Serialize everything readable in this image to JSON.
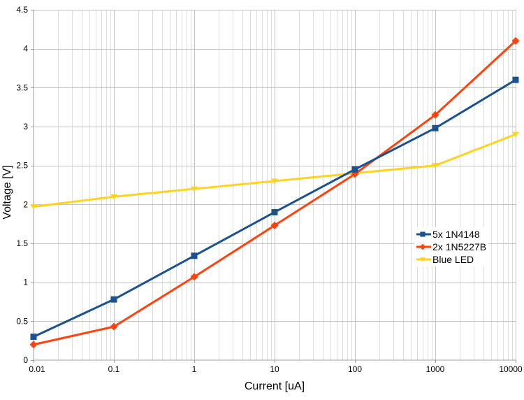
{
  "chart_data": {
    "type": "line",
    "title": "",
    "xlabel": "Current [uA]",
    "ylabel": "Voltage [V]",
    "x_scale": "log",
    "xlim": [
      0.01,
      10000
    ],
    "ylim": [
      0,
      4.5
    ],
    "x_ticks": [
      0.01,
      0.1,
      1,
      10,
      100,
      1000,
      10000
    ],
    "x_tick_labels": [
      "0.01",
      "0.1",
      "1",
      "10",
      "100",
      "1000",
      "10000"
    ],
    "y_ticks": [
      0,
      0.5,
      1,
      1.5,
      2,
      2.5,
      3,
      3.5,
      4,
      4.5
    ],
    "y_tick_labels": [
      "0",
      "0.5",
      "1",
      "1.5",
      "2",
      "2.5",
      "3",
      "3.5",
      "4",
      "4.5"
    ],
    "grid": {
      "horizontal": true,
      "vertical_major": true,
      "vertical_minor_log": true
    },
    "legend": {
      "position": "middle-right",
      "background": "#FFFFFF"
    },
    "x": [
      0.01,
      0.1,
      1,
      10,
      100,
      1000,
      10000
    ],
    "series": [
      {
        "name": "5x 1N4148",
        "marker": "square",
        "color": "#1A5190",
        "values": [
          0.3,
          0.78,
          1.34,
          1.9,
          2.45,
          2.98,
          3.6
        ]
      },
      {
        "name": "2x 1N5227B",
        "marker": "diamond",
        "color": "#FF420E",
        "values": [
          0.2,
          0.43,
          1.07,
          1.73,
          2.39,
          3.15,
          4.1
        ]
      },
      {
        "name": "Blue LED",
        "marker": "triangle-down",
        "color": "#FFD320",
        "values": [
          1.97,
          2.1,
          2.2,
          2.3,
          2.4,
          2.5,
          2.9
        ]
      }
    ]
  },
  "colors": {
    "background": "#FFFFFF",
    "axis": "#9C9C9C",
    "grid_major": "#C3C3C3",
    "grid_minor": "#DEDEDE",
    "text": "#000000"
  }
}
